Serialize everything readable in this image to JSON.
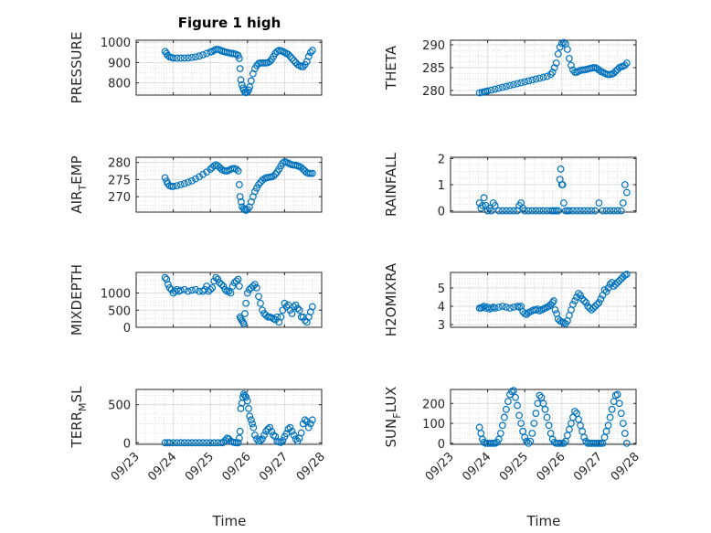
{
  "figure": {
    "title": "Figure 1 high",
    "marker_color": "#0072BD"
  },
  "chart_data": [
    {
      "type": "scatter",
      "ylabel": "PRESSURE",
      "yticks": [
        800,
        900,
        1000
      ],
      "ylim": [
        740,
        1010
      ],
      "xlim": [
        0,
        5
      ],
      "xticks": [
        "09/23",
        "09/24",
        "09/25",
        "09/26",
        "09/27",
        "09/28"
      ],
      "x": [
        0.78,
        0.82,
        0.85,
        0.9,
        0.95,
        1.0,
        1.1,
        1.2,
        1.3,
        1.4,
        1.5,
        1.6,
        1.7,
        1.8,
        1.9,
        2.0,
        2.05,
        2.1,
        2.15,
        2.2,
        2.25,
        2.3,
        2.35,
        2.4,
        2.45,
        2.5,
        2.55,
        2.6,
        2.65,
        2.7,
        2.75,
        2.78,
        2.8,
        2.82,
        2.85,
        2.88,
        2.9,
        2.93,
        2.96,
        3.0,
        3.03,
        3.06,
        3.1,
        3.15,
        3.2,
        3.25,
        3.3,
        3.35,
        3.4,
        3.45,
        3.5,
        3.55,
        3.6,
        3.65,
        3.7,
        3.75,
        3.8,
        3.85,
        3.9,
        3.95,
        4.0,
        4.05,
        4.1,
        4.15,
        4.2,
        4.25,
        4.3,
        4.35,
        4.4,
        4.45,
        4.5,
        4.55,
        4.6,
        4.65,
        4.7,
        4.75
      ],
      "y": [
        955,
        945,
        935,
        928,
        925,
        922,
        922,
        922,
        922,
        923,
        925,
        928,
        932,
        938,
        945,
        952,
        955,
        960,
        965,
        965,
        962,
        958,
        955,
        952,
        950,
        948,
        946,
        945,
        943,
        940,
        935,
        920,
        870,
        815,
        790,
        775,
        765,
        755,
        752,
        755,
        765,
        780,
        810,
        845,
        870,
        885,
        895,
        898,
        898,
        898,
        898,
        900,
        905,
        915,
        930,
        945,
        955,
        960,
        958,
        955,
        950,
        945,
        940,
        930,
        920,
        910,
        900,
        890,
        885,
        880,
        880,
        890,
        905,
        930,
        950,
        960
      ]
    },
    {
      "type": "scatter",
      "ylabel": "THETA",
      "yticks": [
        280,
        285,
        290
      ],
      "ylim": [
        279,
        291
      ],
      "xlim": [
        0,
        5
      ],
      "xticks": [
        "09/23",
        "09/24",
        "09/25",
        "09/26",
        "09/27",
        "09/28"
      ],
      "x": [
        0.78,
        0.85,
        0.9,
        0.95,
        1.0,
        1.1,
        1.2,
        1.3,
        1.4,
        1.5,
        1.6,
        1.7,
        1.8,
        1.9,
        2.0,
        2.1,
        2.2,
        2.3,
        2.4,
        2.5,
        2.6,
        2.7,
        2.75,
        2.8,
        2.85,
        2.9,
        2.95,
        3.0,
        3.05,
        3.1,
        3.15,
        3.2,
        3.25,
        3.3,
        3.35,
        3.4,
        3.45,
        3.5,
        3.55,
        3.6,
        3.65,
        3.7,
        3.75,
        3.8,
        3.85,
        3.9,
        3.95,
        4.0,
        4.05,
        4.1,
        4.15,
        4.2,
        4.25,
        4.3,
        4.35,
        4.4,
        4.45,
        4.5,
        4.55,
        4.6,
        4.65,
        4.7,
        4.75
      ],
      "y": [
        279.5,
        279.6,
        279.7,
        279.8,
        279.9,
        280.1,
        280.3,
        280.5,
        280.7,
        280.9,
        281.1,
        281.3,
        281.5,
        281.7,
        281.9,
        282.1,
        282.3,
        282.5,
        282.7,
        282.9,
        283.1,
        283.5,
        284,
        285,
        286,
        288,
        289.5,
        290.3,
        290.5,
        290.2,
        289,
        287,
        285.5,
        284.5,
        284,
        284,
        284.2,
        284.4,
        284.5,
        284.5,
        284.6,
        284.7,
        284.8,
        284.9,
        285,
        285,
        284.8,
        284.5,
        284.2,
        284,
        283.8,
        283.6,
        283.5,
        283.5,
        283.6,
        283.8,
        284.2,
        284.6,
        285,
        285.2,
        285.3,
        285.5,
        286
      ]
    },
    {
      "type": "scatter",
      "ylabel": "AIR_TEMP",
      "ylabel_main": "AIR",
      "ylabel_sub": "T",
      "ylabel_rest": "EMP",
      "yticks": [
        270,
        275,
        280
      ],
      "ylim": [
        265.5,
        281.5
      ],
      "xlim": [
        0,
        5
      ],
      "xticks": [
        "09/23",
        "09/24",
        "09/25",
        "09/26",
        "09/27",
        "09/28"
      ],
      "x": [
        0.78,
        0.82,
        0.85,
        0.9,
        0.95,
        1.0,
        1.1,
        1.2,
        1.3,
        1.4,
        1.5,
        1.6,
        1.7,
        1.8,
        1.9,
        2.0,
        2.05,
        2.1,
        2.15,
        2.2,
        2.25,
        2.3,
        2.35,
        2.4,
        2.45,
        2.5,
        2.55,
        2.6,
        2.65,
        2.7,
        2.75,
        2.78,
        2.8,
        2.83,
        2.86,
        2.9,
        2.93,
        2.96,
        3.0,
        3.05,
        3.1,
        3.15,
        3.2,
        3.25,
        3.3,
        3.35,
        3.4,
        3.45,
        3.5,
        3.55,
        3.6,
        3.65,
        3.7,
        3.75,
        3.8,
        3.85,
        3.9,
        3.95,
        4.0,
        4.05,
        4.1,
        4.15,
        4.2,
        4.25,
        4.3,
        4.35,
        4.4,
        4.45,
        4.5,
        4.55,
        4.6,
        4.65,
        4.7,
        4.75
      ],
      "y": [
        275.5,
        274.5,
        273.8,
        273.2,
        273,
        273,
        273.2,
        273.5,
        273.8,
        274.2,
        274.6,
        275.2,
        275.8,
        276.5,
        277.2,
        278,
        278.5,
        279,
        279.3,
        279,
        278.5,
        278,
        277.7,
        277.5,
        277.5,
        277.7,
        278,
        278.2,
        278.2,
        278,
        277.5,
        273.5,
        270,
        268.5,
        267,
        266.5,
        266.2,
        266,
        266.3,
        267,
        268.5,
        270,
        271.5,
        272.5,
        273.5,
        274.2,
        274.8,
        275.2,
        275.5,
        275.6,
        275.7,
        275.8,
        276,
        276.5,
        277.2,
        278,
        279,
        279.8,
        280.2,
        280,
        279.8,
        279.5,
        279.3,
        279.2,
        279.2,
        279,
        278.8,
        278.5,
        278,
        277.5,
        277,
        276.8,
        276.8,
        276.8
      ]
    },
    {
      "type": "scatter",
      "ylabel": "RAINFALL",
      "yticks": [
        0,
        1,
        2
      ],
      "ylim": [
        -0.05,
        2.05
      ],
      "xlim": [
        0,
        5
      ],
      "xticks": [
        "09/23",
        "09/24",
        "09/25",
        "09/26",
        "09/27",
        "09/28"
      ],
      "x": [
        0.78,
        0.82,
        0.86,
        0.9,
        0.95,
        1.0,
        1.05,
        1.1,
        1.15,
        1.2,
        1.3,
        1.4,
        1.5,
        1.6,
        1.7,
        1.8,
        1.85,
        1.9,
        1.95,
        2.0,
        2.1,
        2.2,
        2.3,
        2.4,
        2.5,
        2.6,
        2.7,
        2.75,
        2.8,
        2.85,
        2.9,
        2.95,
        2.97,
        3.0,
        3.02,
        3.05,
        3.1,
        3.15,
        3.2,
        3.3,
        3.4,
        3.5,
        3.6,
        3.7,
        3.8,
        3.9,
        4.0,
        4.1,
        4.2,
        4.3,
        4.4,
        4.5,
        4.6,
        4.65,
        4.7,
        4.75
      ],
      "y": [
        0.3,
        0.1,
        0.2,
        0.5,
        0.2,
        0,
        0.1,
        0,
        0.3,
        0.2,
        0,
        0,
        0,
        0,
        0,
        0,
        0.2,
        0.3,
        0.1,
        0,
        0,
        0,
        0,
        0,
        0,
        0,
        0,
        0,
        0,
        0,
        0,
        1.2,
        1.6,
        1.0,
        1.0,
        0.3,
        0,
        0,
        0,
        0,
        0,
        0,
        0,
        0,
        0,
        0,
        0.3,
        0,
        0,
        0,
        0,
        0,
        0,
        0.3,
        1.0,
        0.7
      ]
    },
    {
      "type": "scatter",
      "ylabel": "MIXDEPTH",
      "yticks": [
        0,
        500,
        1000
      ],
      "ylim": [
        0,
        1600
      ],
      "xlim": [
        0,
        5
      ],
      "xticks": [
        "09/23",
        "09/24",
        "09/25",
        "09/26",
        "09/27",
        "09/28"
      ],
      "x": [
        0.78,
        0.82,
        0.86,
        0.9,
        0.95,
        1.0,
        1.05,
        1.1,
        1.15,
        1.2,
        1.3,
        1.4,
        1.5,
        1.6,
        1.7,
        1.8,
        1.85,
        1.9,
        1.95,
        2.0,
        2.05,
        2.1,
        2.15,
        2.2,
        2.25,
        2.3,
        2.35,
        2.4,
        2.45,
        2.5,
        2.55,
        2.6,
        2.65,
        2.7,
        2.75,
        2.78,
        2.8,
        2.82,
        2.85,
        2.88,
        2.9,
        2.93,
        2.96,
        3.0,
        3.05,
        3.1,
        3.15,
        3.2,
        3.25,
        3.3,
        3.35,
        3.4,
        3.45,
        3.5,
        3.55,
        3.6,
        3.65,
        3.7,
        3.75,
        3.8,
        3.85,
        3.9,
        3.95,
        4.0,
        4.05,
        4.1,
        4.15,
        4.2,
        4.25,
        4.3,
        4.35,
        4.4,
        4.45,
        4.5,
        4.55,
        4.6,
        4.65,
        4.7,
        4.75
      ],
      "y": [
        1450,
        1400,
        1250,
        1150,
        1100,
        1000,
        1050,
        1100,
        1050,
        1080,
        1100,
        1050,
        1080,
        1100,
        1050,
        1050,
        1100,
        1200,
        1050,
        1100,
        1150,
        1350,
        1450,
        1400,
        1300,
        1250,
        1200,
        1100,
        1050,
        1050,
        1000,
        1200,
        1300,
        1350,
        1400,
        1200,
        300,
        250,
        200,
        150,
        100,
        400,
        700,
        1000,
        1100,
        1150,
        1200,
        1250,
        1150,
        900,
        700,
        500,
        400,
        350,
        300,
        300,
        280,
        250,
        220,
        300,
        150,
        300,
        500,
        700,
        600,
        650,
        500,
        400,
        600,
        650,
        550,
        500,
        300,
        300,
        200,
        150,
        300,
        450,
        600
      ]
    },
    {
      "type": "scatter",
      "ylabel": "H2OMIXRA",
      "yticks": [
        3,
        4,
        5
      ],
      "ylim": [
        2.85,
        5.85
      ],
      "xlim": [
        0,
        5
      ],
      "xticks": [
        "09/23",
        "09/24",
        "09/25",
        "09/26",
        "09/27",
        "09/28"
      ],
      "x": [
        0.78,
        0.82,
        0.86,
        0.9,
        0.95,
        1.0,
        1.05,
        1.1,
        1.15,
        1.2,
        1.3,
        1.4,
        1.5,
        1.6,
        1.7,
        1.8,
        1.85,
        1.9,
        1.95,
        2.0,
        2.05,
        2.1,
        2.15,
        2.2,
        2.25,
        2.3,
        2.35,
        2.4,
        2.45,
        2.5,
        2.55,
        2.6,
        2.65,
        2.7,
        2.75,
        2.78,
        2.82,
        2.86,
        2.9,
        2.95,
        3.0,
        3.05,
        3.1,
        3.15,
        3.2,
        3.25,
        3.3,
        3.35,
        3.4,
        3.45,
        3.5,
        3.55,
        3.6,
        3.65,
        3.7,
        3.75,
        3.8,
        3.85,
        3.9,
        3.95,
        4.0,
        4.05,
        4.1,
        4.15,
        4.2,
        4.25,
        4.3,
        4.35,
        4.4,
        4.45,
        4.5,
        4.55,
        4.6,
        4.65,
        4.7,
        4.75
      ],
      "y": [
        3.9,
        3.9,
        3.95,
        4.0,
        3.9,
        3.95,
        3.85,
        3.9,
        3.95,
        3.9,
        3.95,
        4.0,
        3.95,
        3.9,
        3.95,
        4.0,
        3.95,
        4.0,
        3.7,
        3.6,
        3.55,
        3.65,
        3.7,
        3.75,
        3.8,
        3.8,
        3.85,
        3.75,
        3.8,
        3.85,
        3.9,
        3.95,
        4.0,
        4.1,
        4.2,
        4.3,
        3.8,
        3.6,
        3.3,
        3.2,
        3.15,
        3.1,
        3.05,
        3.2,
        3.5,
        3.8,
        4.1,
        4.3,
        4.5,
        4.7,
        4.6,
        4.4,
        4.3,
        4.2,
        4.0,
        3.9,
        3.8,
        3.9,
        4.0,
        4.1,
        4.2,
        4.4,
        4.6,
        4.9,
        4.8,
        5.0,
        5.2,
        5.3,
        5.1,
        5.2,
        5.3,
        5.4,
        5.5,
        5.6,
        5.7,
        5.75
      ]
    },
    {
      "type": "scatter",
      "ylabel": "TERR_MSL",
      "ylabel_main": "TERR",
      "ylabel_sub": "M",
      "ylabel_rest": "SL",
      "yticks": [
        0,
        500
      ],
      "ylim": [
        -20,
        700
      ],
      "xlim": [
        0,
        5
      ],
      "xticks": [
        "09/23",
        "09/24",
        "09/25",
        "09/26",
        "09/27",
        "09/28"
      ],
      "x": [
        0.78,
        0.85,
        0.9,
        1.0,
        1.1,
        1.2,
        1.3,
        1.4,
        1.5,
        1.6,
        1.7,
        1.8,
        1.9,
        2.0,
        2.1,
        2.2,
        2.3,
        2.35,
        2.4,
        2.45,
        2.5,
        2.55,
        2.6,
        2.65,
        2.7,
        2.75,
        2.78,
        2.8,
        2.82,
        2.85,
        2.88,
        2.9,
        2.93,
        2.96,
        3.0,
        3.03,
        3.06,
        3.1,
        3.13,
        3.16,
        3.2,
        3.25,
        3.3,
        3.35,
        3.4,
        3.45,
        3.5,
        3.55,
        3.6,
        3.65,
        3.7,
        3.75,
        3.8,
        3.85,
        3.9,
        3.95,
        4.0,
        4.05,
        4.1,
        4.15,
        4.2,
        4.25,
        4.3,
        4.35,
        4.4,
        4.45,
        4.5,
        4.55,
        4.6,
        4.65,
        4.7,
        4.75
      ],
      "y": [
        0,
        0,
        0,
        0,
        0,
        0,
        0,
        0,
        0,
        0,
        0,
        0,
        0,
        0,
        0,
        0,
        0,
        5,
        30,
        60,
        50,
        20,
        10,
        5,
        0,
        0,
        60,
        150,
        450,
        520,
        600,
        640,
        620,
        600,
        550,
        450,
        350,
        300,
        250,
        200,
        100,
        50,
        20,
        30,
        50,
        100,
        150,
        180,
        200,
        150,
        100,
        80,
        20,
        10,
        5,
        30,
        80,
        120,
        180,
        200,
        150,
        100,
        50,
        20,
        60,
        130,
        250,
        300,
        280,
        200,
        250,
        300
      ]
    },
    {
      "type": "scatter",
      "ylabel": "SUN_FLUX",
      "ylabel_main": "SUN",
      "ylabel_sub": "F",
      "ylabel_rest": "LUX",
      "yticks": [
        0,
        100,
        200
      ],
      "ylim": [
        -5,
        270
      ],
      "xlim": [
        0,
        5
      ],
      "xticks": [
        "09/23",
        "09/24",
        "09/25",
        "09/26",
        "09/27",
        "09/28"
      ],
      "x": [
        0.78,
        0.82,
        0.86,
        0.9,
        0.95,
        1.0,
        1.05,
        1.1,
        1.15,
        1.2,
        1.25,
        1.3,
        1.35,
        1.4,
        1.45,
        1.5,
        1.55,
        1.6,
        1.65,
        1.7,
        1.75,
        1.8,
        1.85,
        1.9,
        1.95,
        2.0,
        2.05,
        2.1,
        2.15,
        2.2,
        2.25,
        2.3,
        2.35,
        2.4,
        2.45,
        2.5,
        2.55,
        2.6,
        2.65,
        2.7,
        2.75,
        2.8,
        2.85,
        2.9,
        2.95,
        3.0,
        3.05,
        3.1,
        3.15,
        3.2,
        3.25,
        3.3,
        3.35,
        3.4,
        3.45,
        3.5,
        3.55,
        3.6,
        3.65,
        3.7,
        3.75,
        3.8,
        3.85,
        3.9,
        3.95,
        4.0,
        4.05,
        4.1,
        4.15,
        4.2,
        4.25,
        4.3,
        4.35,
        4.4,
        4.45,
        4.5,
        4.55,
        4.6,
        4.65,
        4.7,
        4.75
      ],
      "y": [
        80,
        50,
        20,
        5,
        0,
        0,
        0,
        0,
        0,
        0,
        5,
        20,
        50,
        90,
        130,
        170,
        210,
        245,
        260,
        265,
        230,
        190,
        140,
        100,
        60,
        30,
        10,
        0,
        10,
        50,
        100,
        150,
        200,
        240,
        230,
        200,
        170,
        130,
        90,
        50,
        20,
        5,
        0,
        0,
        0,
        0,
        0,
        10,
        40,
        70,
        100,
        130,
        160,
        150,
        120,
        90,
        60,
        30,
        10,
        0,
        0,
        0,
        0,
        0,
        0,
        0,
        0,
        0,
        30,
        60,
        90,
        130,
        170,
        210,
        240,
        245,
        200,
        150,
        100,
        50,
        0
      ]
    }
  ],
  "axis_xlabel": "Time"
}
